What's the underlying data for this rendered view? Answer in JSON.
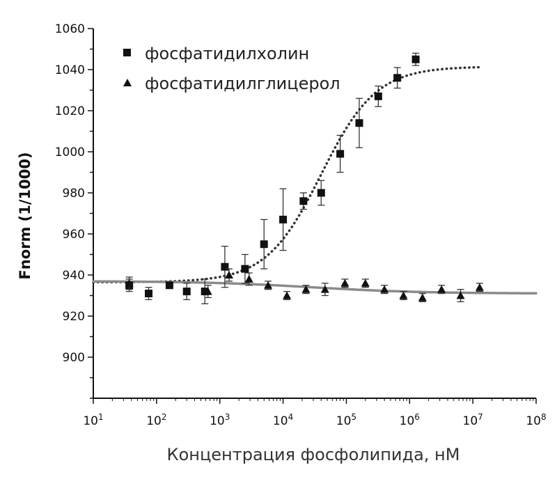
{
  "chart_data": {
    "type": "scatter",
    "title": "",
    "xlabel": "Концентрация фосфолипида, нМ",
    "ylabel": "Fnorm (1/1000)",
    "xscale": "log",
    "xlim": [
      10,
      100000000
    ],
    "ylim": [
      880,
      1060
    ],
    "yticks": [
      900,
      920,
      940,
      960,
      980,
      1000,
      1020,
      1040,
      1060
    ],
    "xticks": [
      {
        "value": 10,
        "label": "10",
        "exp": "1"
      },
      {
        "value": 100,
        "label": "10",
        "exp": "2"
      },
      {
        "value": 1000,
        "label": "10",
        "exp": "3"
      },
      {
        "value": 10000,
        "label": "10",
        "exp": "4"
      },
      {
        "value": 100000,
        "label": "10",
        "exp": "5"
      },
      {
        "value": 1000000,
        "label": "10",
        "exp": "6"
      },
      {
        "value": 10000000,
        "label": "10",
        "exp": "7"
      },
      {
        "value": 100000000,
        "label": "10",
        "exp": "8"
      }
    ],
    "legend_position": "top-left",
    "grid": false,
    "series": [
      {
        "name": "фосфатидилхолин",
        "marker": "square",
        "color": "#111111",
        "fit_style": "dotted",
        "fit_color": "#333333",
        "points": [
          {
            "x": 37,
            "y": 935,
            "err": 3
          },
          {
            "x": 75,
            "y": 931,
            "err": 3
          },
          {
            "x": 160,
            "y": 935,
            "err": 1
          },
          {
            "x": 300,
            "y": 932,
            "err": 4
          },
          {
            "x": 580,
            "y": 932,
            "err": 6
          },
          {
            "x": 1200,
            "y": 944,
            "err": 10
          },
          {
            "x": 2500,
            "y": 943,
            "err": 7
          },
          {
            "x": 5000,
            "y": 955,
            "err": 12
          },
          {
            "x": 10000,
            "y": 967,
            "err": 15
          },
          {
            "x": 21000,
            "y": 976,
            "err": 4
          },
          {
            "x": 40000,
            "y": 980,
            "err": 6
          },
          {
            "x": 80000,
            "y": 999,
            "err": 9
          },
          {
            "x": 160000,
            "y": 1014,
            "err": 12
          },
          {
            "x": 320000,
            "y": 1027,
            "err": 5
          },
          {
            "x": 640000,
            "y": 1036,
            "err": 5
          },
          {
            "x": 1250000,
            "y": 1045,
            "err": 3
          }
        ],
        "fit": {
          "bottom": 936.5,
          "top": 1041.5,
          "ec50": 40000,
          "hill": 1.0,
          "xmin": 10,
          "xmax": 13000000
        }
      },
      {
        "name": "фосфатидилглицерол",
        "marker": "triangle",
        "color": "#111111",
        "fit_style": "solid",
        "fit_color": "#8a8a8a",
        "points": [
          {
            "x": 37,
            "y": 936,
            "err": 3
          },
          {
            "x": 650,
            "y": 932,
            "err": 3
          },
          {
            "x": 1400,
            "y": 940,
            "err": 3
          },
          {
            "x": 2900,
            "y": 938,
            "err": 3
          },
          {
            "x": 5800,
            "y": 935,
            "err": 2
          },
          {
            "x": 11500,
            "y": 930,
            "err": 2
          },
          {
            "x": 23000,
            "y": 933,
            "err": 2
          },
          {
            "x": 46000,
            "y": 933,
            "err": 3
          },
          {
            "x": 95000,
            "y": 936,
            "err": 2
          },
          {
            "x": 200000,
            "y": 936,
            "err": 2
          },
          {
            "x": 400000,
            "y": 933,
            "err": 2
          },
          {
            "x": 800000,
            "y": 930,
            "err": 2
          },
          {
            "x": 1600000,
            "y": 929,
            "err": 2
          },
          {
            "x": 3200000,
            "y": 933,
            "err": 2
          },
          {
            "x": 6400000,
            "y": 930,
            "err": 3
          },
          {
            "x": 12800000,
            "y": 934,
            "err": 2
          }
        ],
        "fit": {
          "bottom": 937,
          "top": 931,
          "ec50": 30000,
          "hill": 0.5,
          "xmin": 10,
          "xmax": 100000000
        }
      }
    ]
  }
}
